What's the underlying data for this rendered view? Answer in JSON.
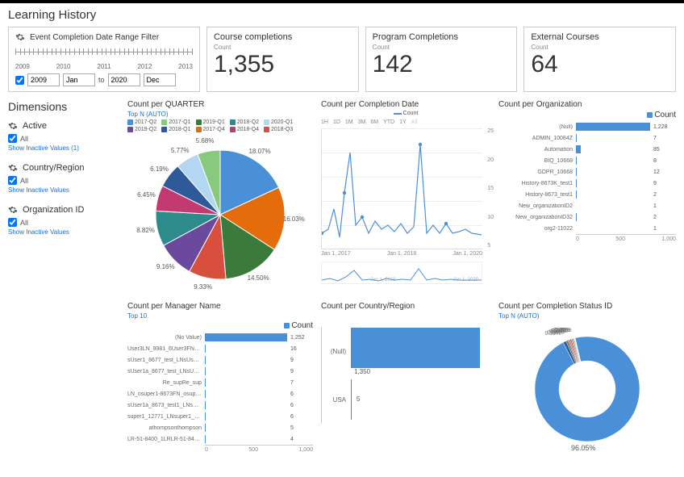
{
  "page": {
    "title": "Learning History"
  },
  "filter": {
    "title": "Event Completion Date Range Filter",
    "years": [
      "2009",
      "2010",
      "2011",
      "2012",
      "2013"
    ],
    "from_year": "2009",
    "from_month": "Jan",
    "to_label": "to",
    "to_year": "2020",
    "to_month": "Dec"
  },
  "kpis": [
    {
      "label": "Course completions",
      "sub": "Count",
      "value": "1,355"
    },
    {
      "label": "Program Completions",
      "sub": "Count",
      "value": "142"
    },
    {
      "label": "External   Courses",
      "sub": "Count",
      "value": "64"
    }
  ],
  "dimensions_title": "Dimensions",
  "dims": [
    {
      "name": "Active",
      "all": "All",
      "link": "Show Inactive Values (1)"
    },
    {
      "name": "Country/Region",
      "all": "All",
      "link": "Show Inactive Values"
    },
    {
      "name": "Organization ID",
      "all": "All",
      "link": "Show Inactive Values"
    }
  ],
  "quarter": {
    "title": "Count per QUARTER",
    "sub": "Top N (AUTO)",
    "legend": [
      {
        "l": "2017-Q2",
        "c": "#4a90d9"
      },
      {
        "l": "2017-Q1",
        "c": "#89c97d"
      },
      {
        "l": "2019-Q1",
        "c": "#3a7a3a"
      },
      {
        "l": "2018-Q2",
        "c": "#2e8b8b"
      },
      {
        "l": "2020-Q1",
        "c": "#b3d7f2"
      },
      {
        "l": "2019-Q2",
        "c": "#6b4a9e"
      },
      {
        "l": "2018-Q1",
        "c": "#2f5a99"
      },
      {
        "l": "2017-Q4",
        "c": "#e46c0a"
      },
      {
        "l": "2018-Q4",
        "c": "#c33a70"
      },
      {
        "l": "2018-Q3",
        "c": "#d94f3d"
      }
    ],
    "slices": [
      {
        "pct": 18.07,
        "c": "#4a90d9"
      },
      {
        "pct": 16.03,
        "c": "#e46c0a"
      },
      {
        "pct": 14.5,
        "c": "#3a7a3a"
      },
      {
        "pct": 9.33,
        "c": "#d94f3d"
      },
      {
        "pct": 9.16,
        "c": "#6b4a9e"
      },
      {
        "pct": 8.82,
        "c": "#2e8b8b"
      },
      {
        "pct": 6.45,
        "c": "#c33a70"
      },
      {
        "pct": 6.19,
        "c": "#2f5a99"
      },
      {
        "pct": 5.77,
        "c": "#b3d7f2"
      },
      {
        "pct": 5.68,
        "c": "#89c97d"
      }
    ]
  },
  "completion_date": {
    "title": "Count per Completion Date",
    "legend": "Count",
    "ranges": [
      "1H",
      "1D",
      "1M",
      "3M",
      "6M",
      "YTD",
      "1Y",
      "All"
    ],
    "yticks": [
      "25",
      "20",
      "15",
      "10",
      "5"
    ],
    "xlabels": [
      "Jan 1, 2017",
      "Jan 1, 2018",
      "Jan 1, 2020"
    ],
    "mini_xlabels": [
      "Jan 1, 2018",
      "Jan 1, 2020"
    ]
  },
  "organization": {
    "title": "Count per Organization",
    "legend": "Count",
    "rows": [
      {
        "l": "(Null)",
        "v": 1228,
        "txt": "1,228"
      },
      {
        "l": "ADMIN_10084Z",
        "v": 7,
        "txt": "7"
      },
      {
        "l": "Automation",
        "v": 85,
        "txt": "85"
      },
      {
        "l": "BIQ_10668",
        "v": 8,
        "txt": "8"
      },
      {
        "l": "GDPR_10668",
        "v": 12,
        "txt": "12"
      },
      {
        "l": "History-8673K_test1",
        "v": 9,
        "txt": "9"
      },
      {
        "l": "History-8673_test1",
        "v": 2,
        "txt": "2"
      },
      {
        "l": "New_organizationID2",
        "v": 1,
        "txt": "1"
      },
      {
        "l": "New_organizationID32",
        "v": 2,
        "txt": "2"
      },
      {
        "l": "org2-11022",
        "v": 1,
        "txt": "1"
      }
    ],
    "xticks": [
      "0",
      "500",
      "1,000"
    ],
    "max": 1228
  },
  "manager": {
    "title": "Count per Manager Name",
    "sub": "Top 10",
    "legend": "Count",
    "rows": [
      {
        "l": "(No Value)",
        "v": 1252,
        "txt": "1,252"
      },
      {
        "l": "User3LN_9981_6User3FN_9981_6",
        "v": 16,
        "txt": "16"
      },
      {
        "l": "sUser1_8677_test_LNsUser1_8677_test_FN",
        "v": 9,
        "txt": "9"
      },
      {
        "l": "sUser1a_8677_test_LNsUser1a_8677_test_FN",
        "v": 9,
        "txt": "9"
      },
      {
        "l": "Re_supRe_sup",
        "v": 7,
        "txt": "7"
      },
      {
        "l": "LN_osuper1-8673FN_osuper1-8671",
        "v": 6,
        "txt": "6"
      },
      {
        "l": "sUser1a_8673_test1_LNsUser1a_8673_te...",
        "v": 6,
        "txt": "6"
      },
      {
        "l": "super1_12771_LNsuper1_12771_FN",
        "v": 6,
        "txt": "6"
      },
      {
        "l": "athompsonthompson",
        "v": 5,
        "txt": "5"
      },
      {
        "l": "LR-51-8400_1LRLR-51-8400_1FN",
        "v": 4,
        "txt": "4"
      }
    ],
    "xticks": [
      "0",
      "500",
      "1,000"
    ],
    "max": 1252
  },
  "country": {
    "title": "Count per Country/Region",
    "rows": [
      {
        "l": "(Null)",
        "v": 1350,
        "txt": "1,350"
      },
      {
        "l": "USA",
        "v": 5,
        "txt": "5"
      }
    ],
    "max": 1350
  },
  "status": {
    "title": "Count per Completion Status ID",
    "sub": "Top N (AUTO)",
    "big": "96.05%",
    "small": [
      "0.30%",
      "0.30%",
      "0.38%",
      "0.38%",
      "0.38%",
      "0.38%",
      "0.53%",
      "0.99%"
    ],
    "colors": {
      "main": "#4a90d9",
      "others": [
        "#89c97d",
        "#2e8b8b",
        "#e46c0a",
        "#6b4a9e",
        "#d94f3d",
        "#c33a70",
        "#3a7a3a",
        "#2f5a99"
      ]
    }
  }
}
